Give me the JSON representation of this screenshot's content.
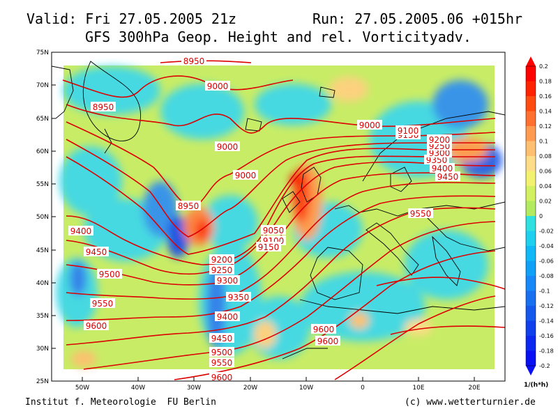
{
  "header": {
    "valid": "Valid: Fri 27.05.2005 21z",
    "run": "Run: 27.05.2005.06 +015hr",
    "title": "GFS 300hPa Geop. Height and rel. Vorticityadv."
  },
  "map": {
    "lat_labels": [
      "75N",
      "70N",
      "65N",
      "60N",
      "55N",
      "50N",
      "45N",
      "40N",
      "35N",
      "30N",
      "25N"
    ],
    "lon_labels": [
      "50W",
      "40W",
      "30W",
      "20W",
      "10W",
      "0",
      "10E",
      "20E"
    ],
    "contour_labels": [
      "8950",
      "9000",
      "8950",
      "9000",
      "9000",
      "9000",
      "8950",
      "9050",
      "9100",
      "9150",
      "9200",
      "9250",
      "9300",
      "9350",
      "9400",
      "9450",
      "9500",
      "9550",
      "9600",
      "9400",
      "9450",
      "9500",
      "9550",
      "9600",
      "9600",
      "9550",
      "9450",
      "9400",
      "9350",
      "9300",
      "9250",
      "9200",
      "9150",
      "9100",
      "9600"
    ],
    "colors": {
      "height_contour": "#dd0000",
      "land_outline": "#000000"
    }
  },
  "colorbar": {
    "labels": [
      "0.2",
      "0.18",
      "0.16",
      "0.14",
      "0.12",
      "0.1",
      "0.08",
      "0.06",
      "0.04",
      "0.02",
      "0",
      "-0.02",
      "-0.04",
      "-0.06",
      "-0.08",
      "-0.1",
      "-0.12",
      "-0.14",
      "-0.16",
      "-0.18",
      "-0.2"
    ],
    "colors": [
      "#ff0000",
      "#ff2200",
      "#ff4a10",
      "#ff7030",
      "#ff9a50",
      "#ffbf70",
      "#ffdc88",
      "#f2f270",
      "#d2f060",
      "#b2ea60",
      "#2ee0e0",
      "#1ed0f0",
      "#10b8f8",
      "#10a0f8",
      "#1888f8",
      "#1870f0",
      "#1458ee",
      "#1040ee",
      "#0c28f0",
      "#0a10f4"
    ],
    "unit": "1/(h*h)"
  },
  "footer": {
    "left": "Institut f. Meteorologie  FU Berlin",
    "right": "(c) www.wetterturnier.de"
  }
}
